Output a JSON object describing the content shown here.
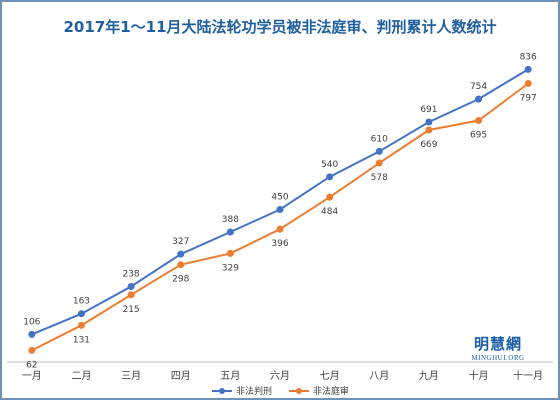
{
  "chart_data": {
    "type": "line",
    "title": "2017年1～11月大陆法轮功学员被非法庭审、判刑累计人数统计",
    "categories": [
      "一月",
      "二月",
      "三月",
      "四月",
      "五月",
      "六月",
      "七月",
      "八月",
      "九月",
      "十月",
      "十一月"
    ],
    "series": [
      {
        "name": "非法判刑",
        "color": "#4472c4",
        "values": [
          106,
          163,
          238,
          327,
          388,
          450,
          540,
          610,
          691,
          754,
          836
        ]
      },
      {
        "name": "非法庭审",
        "color": "#ed7d31",
        "values": [
          62,
          131,
          215,
          298,
          329,
          396,
          484,
          578,
          669,
          695,
          797
        ]
      }
    ],
    "xlabel": "",
    "ylabel": "",
    "ylim": [
      30,
      870
    ],
    "grid": false,
    "legend": "bottom"
  },
  "watermark": {
    "main": "明慧網",
    "sub": "MINGHUI.ORG"
  }
}
